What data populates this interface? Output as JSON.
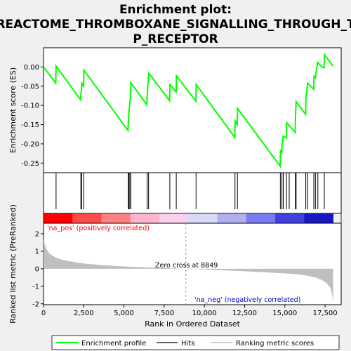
{
  "chart_data": {
    "type": "line",
    "title_lines": [
      "Enrichment plot:",
      "REACTOME_THROMBOXANE_SIGNALLING_THROUGH_T",
      "P_RECEPTOR"
    ],
    "ylabel_top": "Enrichment score (ES)",
    "ylabel_bottom": "Ranked list metric (PreRanked)",
    "xlabel": "Rank in Ordered Dataset",
    "x_ticks": [
      0,
      2500,
      5000,
      7500,
      10000,
      12500,
      15000,
      17500
    ],
    "x_tick_labels": [
      "0",
      "2,500",
      "5,000",
      "7,500",
      "10,000",
      "12,500",
      "15,000",
      "17,500"
    ],
    "xlim": [
      0,
      18500
    ],
    "es_ylim": [
      -0.275,
      0.05
    ],
    "es_ticks": [
      0.0,
      -0.05,
      -0.1,
      -0.15,
      -0.2,
      -0.25
    ],
    "es_tick_labels": [
      "0.00",
      "-0.05",
      "-0.10",
      "-0.15",
      "-0.20",
      "-0.25"
    ],
    "metric_ylim": [
      -2.05,
      2.6
    ],
    "metric_ticks": [
      2,
      1,
      0,
      -1,
      -2
    ],
    "metric_tick_labels": [
      "2",
      "1",
      "0",
      "-1",
      "-2"
    ],
    "n_genes": 18000,
    "hits": [
      780,
      2320,
      2370,
      2500,
      5270,
      5300,
      5360,
      5420,
      6440,
      6530,
      7850,
      8250,
      9480,
      11900,
      12050,
      14720,
      14820,
      14900,
      15100,
      15270,
      15650,
      15700,
      16300,
      16420,
      16800,
      16900,
      17050,
      17450
    ],
    "es_profile": [
      [
        0,
        0.0
      ],
      [
        760,
        -0.042
      ],
      [
        780,
        0.002
      ],
      [
        2300,
        -0.085
      ],
      [
        2320,
        -0.072
      ],
      [
        2360,
        -0.056
      ],
      [
        2380,
        -0.042
      ],
      [
        2490,
        -0.05
      ],
      [
        2510,
        -0.008
      ],
      [
        5250,
        -0.165
      ],
      [
        5270,
        -0.145
      ],
      [
        5300,
        -0.12
      ],
      [
        5360,
        -0.098
      ],
      [
        5400,
        -0.078
      ],
      [
        5430,
        -0.041
      ],
      [
        6420,
        -0.098
      ],
      [
        6440,
        -0.077
      ],
      [
        6540,
        -0.016
      ],
      [
        7840,
        -0.088
      ],
      [
        7860,
        -0.046
      ],
      [
        8240,
        -0.065
      ],
      [
        8260,
        -0.023
      ],
      [
        9470,
        -0.089
      ],
      [
        9490,
        -0.046
      ],
      [
        11890,
        -0.183
      ],
      [
        11910,
        -0.14
      ],
      [
        12040,
        -0.15
      ],
      [
        12060,
        -0.108
      ],
      [
        14710,
        -0.258
      ],
      [
        14730,
        -0.218
      ],
      [
        14810,
        -0.222
      ],
      [
        14830,
        -0.198
      ],
      [
        14900,
        -0.18
      ],
      [
        15090,
        -0.185
      ],
      [
        15110,
        -0.145
      ],
      [
        15260,
        -0.152
      ],
      [
        15640,
        -0.17
      ],
      [
        15660,
        -0.13
      ],
      [
        15700,
        -0.09
      ],
      [
        16290,
        -0.123
      ],
      [
        16310,
        -0.08
      ],
      [
        16420,
        -0.042
      ],
      [
        16790,
        -0.058
      ],
      [
        16810,
        -0.025
      ],
      [
        16890,
        -0.028
      ],
      [
        17040,
        0.012
      ],
      [
        17300,
        0.0
      ],
      [
        17440,
        -0.002
      ],
      [
        17460,
        0.032
      ],
      [
        18000,
        0.002
      ]
    ],
    "metric_profile": [
      [
        0,
        1.72
      ],
      [
        60,
        1.45
      ],
      [
        150,
        1.2
      ],
      [
        300,
        0.95
      ],
      [
        500,
        0.78
      ],
      [
        800,
        0.62
      ],
      [
        1200,
        0.5
      ],
      [
        1800,
        0.4
      ],
      [
        2500,
        0.3
      ],
      [
        3500,
        0.22
      ],
      [
        4500,
        0.16
      ],
      [
        5500,
        0.11
      ],
      [
        6500,
        0.07
      ],
      [
        7500,
        0.04
      ],
      [
        8300,
        0.015
      ],
      [
        8849,
        0.0
      ],
      [
        9500,
        -0.02
      ],
      [
        10500,
        -0.06
      ],
      [
        11500,
        -0.1
      ],
      [
        12500,
        -0.14
      ],
      [
        13500,
        -0.19
      ],
      [
        14500,
        -0.24
      ],
      [
        15500,
        -0.3
      ],
      [
        16300,
        -0.38
      ],
      [
        16900,
        -0.5
      ],
      [
        17300,
        -0.64
      ],
      [
        17600,
        -0.82
      ],
      [
        17800,
        -1.05
      ],
      [
        17900,
        -1.3
      ],
      [
        17960,
        -1.6
      ],
      [
        18000,
        -1.9
      ]
    ],
    "zero_cross": 8849,
    "zero_cross_label": "Zero cross at 8849",
    "pos_label": "'na_pos' (positively correlated)",
    "neg_label": "'na_neg' (negatively correlated)",
    "legend": [
      "Enrichment profile",
      "Hits",
      "Ranking metric scores"
    ],
    "colors": {
      "es_line": "#00ff00",
      "hit_line": "#000000",
      "metric_fill": "#bfbfbf",
      "pos_text": "#ff0000",
      "neg_text": "#0000cc",
      "grid_dash": "#a0a0a0",
      "bar_colors": [
        "#ff0000",
        "#ff4a4a",
        "#ff8080",
        "#ffb5cf",
        "#f8d1ec",
        "#d8d8f8",
        "#b0b0f0",
        "#7a7af0",
        "#4040e0",
        "#1818c0"
      ]
    }
  }
}
